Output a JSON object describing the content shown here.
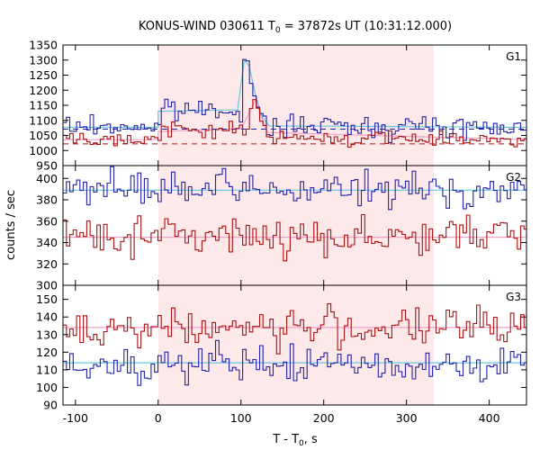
{
  "chart_data": {
    "type": "line",
    "title": {
      "main": "KONUS-WIND 030611 T",
      "sub": "0",
      "rest": " = 37872s UT (10:31:12.000)"
    },
    "xlabel": {
      "main": "T - T",
      "sub": "0",
      "rest": ", s"
    },
    "ylabel": "counts / sec",
    "xlim": [
      -115,
      445
    ],
    "x_ticks": [
      -100,
      0,
      100,
      200,
      300,
      400
    ],
    "x_tick_labels": [
      "-100",
      "0",
      "100",
      "200",
      "300",
      "400"
    ],
    "highlight_interval": [
      0,
      333
    ],
    "colors": {
      "highlight": "#fde8ea",
      "blue_series": "#2222aa",
      "red_series": "#aa1111",
      "blue_fit": "#66c8e0",
      "red_fit": "#f4a0c8",
      "axis": "#000000"
    },
    "bin_width": 4.096,
    "panels": [
      {
        "label": "G1",
        "ylim": [
          950,
          1350
        ],
        "y_ticks": [
          950,
          1000,
          1050,
          1100,
          1150,
          1200,
          1250,
          1300,
          1350
        ],
        "y_tick_labels": [
          "950",
          "1000",
          "1050",
          "1100",
          "1150",
          "1200",
          "1250",
          "1300",
          "1350"
        ],
        "series": [
          {
            "color": "blue",
            "background": 1080,
            "noise": 18,
            "pulse": {
              "start": 0,
              "end": 130,
              "step": 55
            },
            "peaks": [
              [
                100,
                1200
              ],
              [
                104,
                1305
              ],
              [
                108,
                1295
              ],
              [
                112,
                1230
              ],
              [
                116,
                1180
              ],
              [
                120,
                1140
              ],
              [
                124,
                1120
              ],
              [
                128,
                1110
              ]
            ]
          },
          {
            "color": "red",
            "background": 1040,
            "noise": 12,
            "pulse": {
              "start": 0,
              "end": 130,
              "step": 28
            },
            "peaks": [
              [
                112,
                1140
              ],
              [
                116,
                1175
              ],
              [
                120,
                1140
              ],
              [
                124,
                1095
              ],
              [
                128,
                1080
              ]
            ]
          }
        ],
        "reference_lines": [
          {
            "color": "blue",
            "style": "dashed",
            "y": 1071
          },
          {
            "color": "red",
            "style": "dashed",
            "y": 1022
          }
        ],
        "fit_curves": [
          {
            "color": "blue_fit",
            "points": [
              [
                -115,
                1077
              ],
              [
                0,
                1077
              ],
              [
                0,
                1130
              ],
              [
                96,
                1135
              ],
              [
                104,
                1300
              ],
              [
                110,
                1280
              ],
              [
                118,
                1180
              ],
              [
                126,
                1110
              ],
              [
                134,
                1082
              ],
              [
                445,
                1077
              ]
            ]
          },
          {
            "color": "red_fit",
            "points": [
              [
                -115,
                1036
              ],
              [
                0,
                1036
              ],
              [
                0,
                1063
              ],
              [
                100,
                1072
              ],
              [
                112,
                1135
              ],
              [
                118,
                1170
              ],
              [
                124,
                1115
              ],
              [
                132,
                1060
              ],
              [
                445,
                1036
              ]
            ]
          }
        ]
      },
      {
        "label": "G2",
        "ylim": [
          300,
          412
        ],
        "y_ticks": [
          300,
          320,
          340,
          360,
          380,
          400
        ],
        "y_tick_labels": [
          "300",
          "320",
          "340",
          "360",
          "380",
          "400"
        ],
        "series": [
          {
            "color": "blue",
            "background": 389,
            "noise": 8,
            "pulse": null,
            "peaks": []
          },
          {
            "color": "red",
            "background": 346,
            "noise": 9,
            "pulse": null,
            "peaks": []
          }
        ],
        "reference_lines": [],
        "fit_curves": [
          {
            "color": "blue_fit",
            "points": [
              [
                -115,
                389
              ],
              [
                445,
                389
              ]
            ]
          },
          {
            "color": "red_fit",
            "points": [
              [
                -115,
                345
              ],
              [
                445,
                345
              ]
            ]
          }
        ]
      },
      {
        "label": "G3",
        "ylim": [
          90,
          158
        ],
        "y_ticks": [
          90,
          100,
          110,
          120,
          130,
          140,
          150
        ],
        "y_tick_labels": [
          "90",
          "100",
          "110",
          "120",
          "130",
          "140",
          "150"
        ],
        "series": [
          {
            "color": "red",
            "background": 134,
            "noise": 5.5,
            "pulse": null,
            "peaks": []
          },
          {
            "color": "blue",
            "background": 113,
            "noise": 5,
            "pulse": null,
            "peaks": []
          }
        ],
        "reference_lines": [],
        "fit_curves": [
          {
            "color": "red_fit",
            "points": [
              [
                -115,
                134
              ],
              [
                445,
                134
              ]
            ]
          },
          {
            "color": "blue_fit",
            "points": [
              [
                -115,
                114
              ],
              [
                445,
                114
              ]
            ]
          }
        ]
      }
    ]
  }
}
